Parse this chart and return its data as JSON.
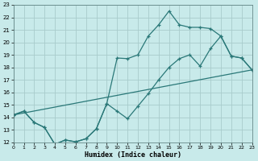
{
  "xlabel": "Humidex (Indice chaleur)",
  "xlim": [
    0,
    23
  ],
  "ylim": [
    12,
    23
  ],
  "xticks": [
    0,
    1,
    2,
    3,
    4,
    5,
    6,
    7,
    8,
    9,
    10,
    11,
    12,
    13,
    14,
    15,
    16,
    17,
    18,
    19,
    20,
    21,
    22,
    23
  ],
  "yticks": [
    12,
    13,
    14,
    15,
    16,
    17,
    18,
    19,
    20,
    21,
    22,
    23
  ],
  "bg_color": "#c8eaea",
  "grid_color": "#a8cccc",
  "line_color": "#2a7878",
  "line1_x": [
    0,
    1,
    2,
    3,
    4,
    5,
    6,
    7,
    8,
    9,
    10,
    11,
    12,
    13,
    14,
    15,
    16,
    17,
    18,
    19,
    20,
    21,
    22,
    23
  ],
  "line1_y": [
    14.2,
    14.5,
    13.6,
    13.2,
    11.85,
    12.2,
    12.05,
    12.3,
    13.1,
    15.1,
    14.5,
    13.9,
    14.9,
    15.9,
    17.0,
    18.0,
    18.7,
    19.0,
    18.1,
    19.5,
    20.5,
    18.9,
    18.75,
    17.8
  ],
  "line2_x": [
    0,
    23
  ],
  "line2_y": [
    14.2,
    17.8
  ],
  "line3_x": [
    0,
    1,
    2,
    3,
    4,
    5,
    6,
    7,
    8,
    9,
    10,
    11,
    12,
    13,
    14,
    15,
    16,
    17,
    18,
    19,
    20,
    21,
    22,
    23
  ],
  "line3_y": [
    14.2,
    14.5,
    13.6,
    13.2,
    11.85,
    12.2,
    12.05,
    12.3,
    13.1,
    15.1,
    18.75,
    18.7,
    19.0,
    20.5,
    21.4,
    22.5,
    21.4,
    21.2,
    21.2,
    21.1,
    20.5,
    18.9,
    18.75,
    17.8
  ]
}
